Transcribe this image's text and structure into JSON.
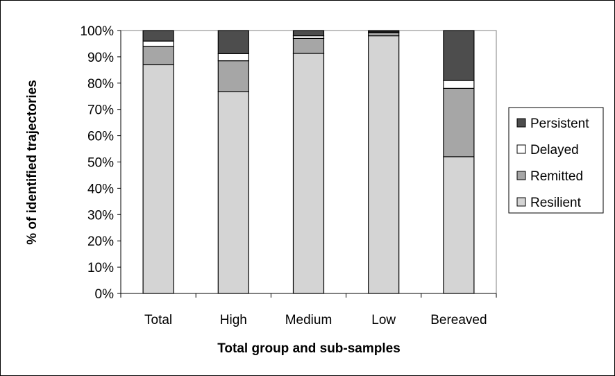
{
  "chart_data": {
    "type": "bar",
    "stacked": true,
    "categories": [
      "Total",
      "High",
      "Medium",
      "Low",
      "Bereaved"
    ],
    "series": [
      {
        "name": "Resilient",
        "color": "#d4d4d4",
        "values": [
          87,
          76.8,
          91.3,
          98,
          52
        ]
      },
      {
        "name": "Remitted",
        "color": "#a6a6a6",
        "values": [
          7,
          11.7,
          5.7,
          1.2,
          26
        ]
      },
      {
        "name": "Delayed",
        "color": "#ffffff",
        "values": [
          2,
          2.7,
          1.0,
          0.3,
          3
        ]
      },
      {
        "name": "Persistent",
        "color": "#4d4d4d",
        "values": [
          4,
          8.8,
          2.0,
          0.5,
          19
        ]
      }
    ],
    "xlabel": "Total group and sub-samples",
    "ylabel": "% of identified trajectories",
    "ylim": [
      0,
      100
    ],
    "yticks": [
      "0%",
      "10%",
      "20%",
      "30%",
      "40%",
      "50%",
      "60%",
      "70%",
      "80%",
      "90%",
      "100%"
    ],
    "legend": {
      "placement": "right",
      "order": [
        "Persistent",
        "Delayed",
        "Remitted",
        "Resilient"
      ]
    },
    "grid": false
  }
}
